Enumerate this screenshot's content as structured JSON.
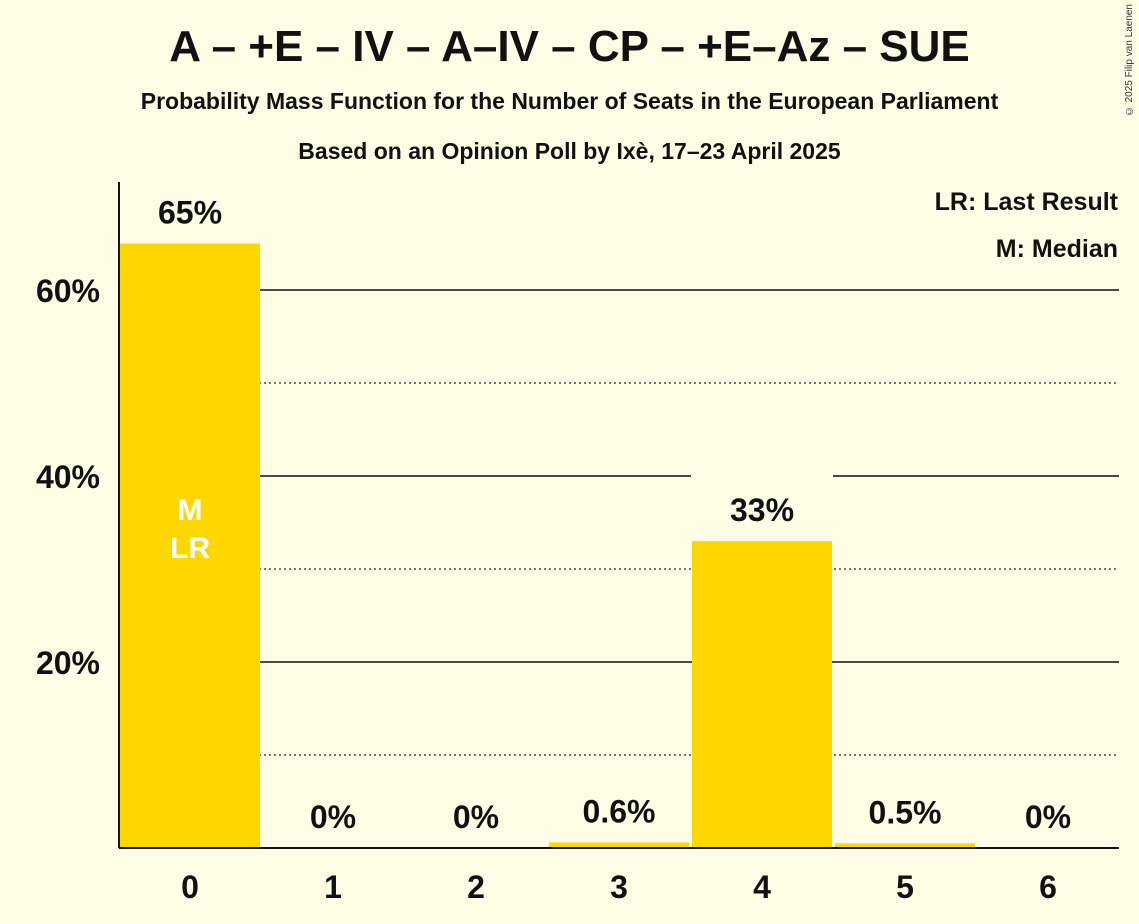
{
  "title": "A – +E – IV – A–IV – CP – +E–Az – SUE",
  "subtitle": "Probability Mass Function for the Number of Seats in the European Parliament",
  "source": "Based on an Opinion Poll by Ixè, 17–23 April 2025",
  "copyright": "© 2025 Filip van Laenen",
  "legend": {
    "last_result": "LR: Last Result",
    "median": "M: Median"
  },
  "colors": {
    "bar": "#ffd700",
    "background": "#fffde6",
    "axis": "#111111"
  },
  "chart_data": {
    "type": "bar",
    "categories": [
      "0",
      "1",
      "2",
      "3",
      "4",
      "5",
      "6"
    ],
    "values": [
      65,
      0,
      0,
      0.6,
      33,
      0.5,
      0
    ],
    "data_labels": [
      "65%",
      "0%",
      "0%",
      "0.6%",
      "33%",
      "0.5%",
      "0%"
    ],
    "y_ticks": [
      {
        "value": 20,
        "label": "20%"
      },
      {
        "value": 40,
        "label": "40%"
      },
      {
        "value": 60,
        "label": "60%"
      }
    ],
    "minor_gridlines": [
      10,
      30,
      50
    ],
    "ylim": [
      0,
      70
    ],
    "median_category": "0",
    "last_result_category": "0",
    "median_marker": "M",
    "last_result_marker": "LR",
    "grid": true,
    "legend_position": "top-right"
  }
}
